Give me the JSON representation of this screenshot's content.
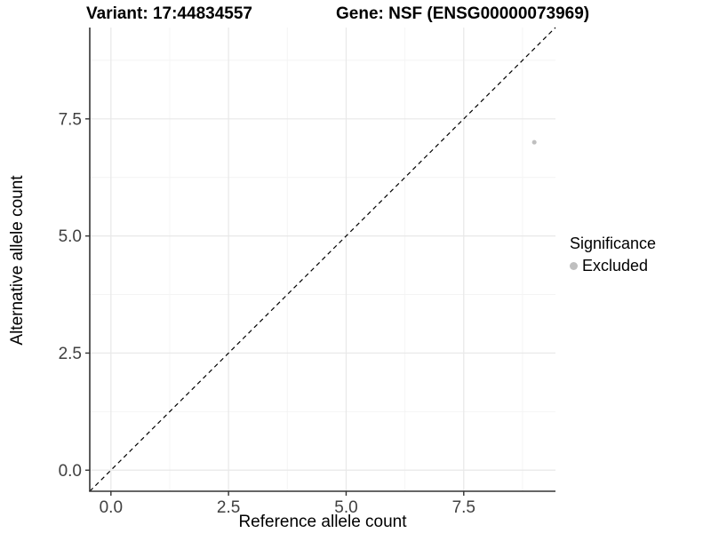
{
  "chart_data": {
    "type": "scatter",
    "titles": {
      "variant": "Variant: 17:44834557",
      "gene": "Gene: NSF (ENSG00000073969)"
    },
    "xlabel": "Reference allele count",
    "ylabel": "Alternative allele count",
    "xlim": [
      -0.45,
      9.45
    ],
    "ylim": [
      -0.45,
      9.45
    ],
    "x_ticks": {
      "values": [
        0,
        2.5,
        5,
        7.5
      ],
      "labels": [
        "0.0",
        "2.5",
        "5.0",
        "7.5"
      ]
    },
    "y_ticks": {
      "values": [
        0,
        2.5,
        5,
        7.5
      ],
      "labels": [
        "0.0",
        "2.5",
        "5.0",
        "7.5"
      ]
    },
    "x_minor_gridlines": [
      1.25,
      3.75,
      6.25,
      8.75
    ],
    "y_minor_gridlines": [
      1.25,
      3.75,
      6.25,
      8.75
    ],
    "grid": "major and minor, on white panel",
    "points": [
      {
        "x": 9,
        "y": 7,
        "series": "Excluded"
      }
    ],
    "identity_line": {
      "slope": 1,
      "intercept": 0,
      "style": "dashed",
      "color": "#000000"
    },
    "series_colors": {
      "Excluded": "#bfbfbf"
    },
    "legend": {
      "title": "Significance",
      "position": "right",
      "items": [
        {
          "label": "Excluded",
          "color": "#bfbfbf"
        }
      ]
    },
    "style_colors": {
      "axis_line": "#333333",
      "tick_mark": "#333333",
      "tick_label": "#404040",
      "grid_major": "#e8e8e8",
      "grid_minor": "#f4f4f4"
    }
  }
}
